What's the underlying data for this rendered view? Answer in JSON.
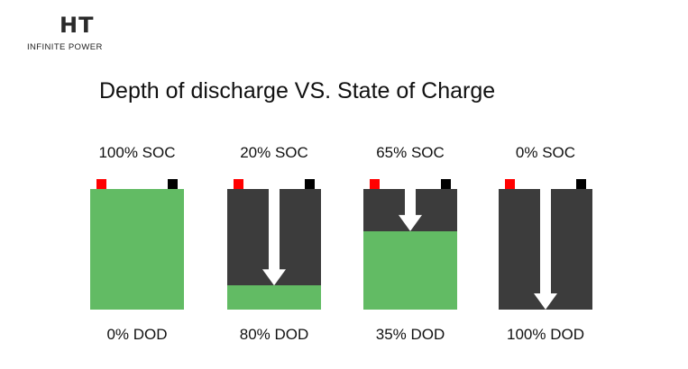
{
  "logo": {
    "mark": "HT",
    "tagline": "INFINITE POWER"
  },
  "title": "Depth of discharge VS. State of Charge",
  "colors": {
    "charge": "#62bb64",
    "empty": "#3c3c3c",
    "positive_terminal": "#ff0000",
    "negative_terminal": "#000000",
    "arrow": "#ffffff"
  },
  "batteries": [
    {
      "soc": 100,
      "soc_label": "100% SOC",
      "dod": 0,
      "dod_label": "0% DOD"
    },
    {
      "soc": 20,
      "soc_label": "20% SOC",
      "dod": 80,
      "dod_label": "80% DOD"
    },
    {
      "soc": 65,
      "soc_label": "65% SOC",
      "dod": 35,
      "dod_label": "35% DOD"
    },
    {
      "soc": 0,
      "soc_label": "0% SOC",
      "dod": 100,
      "dod_label": "100% DOD"
    }
  ]
}
